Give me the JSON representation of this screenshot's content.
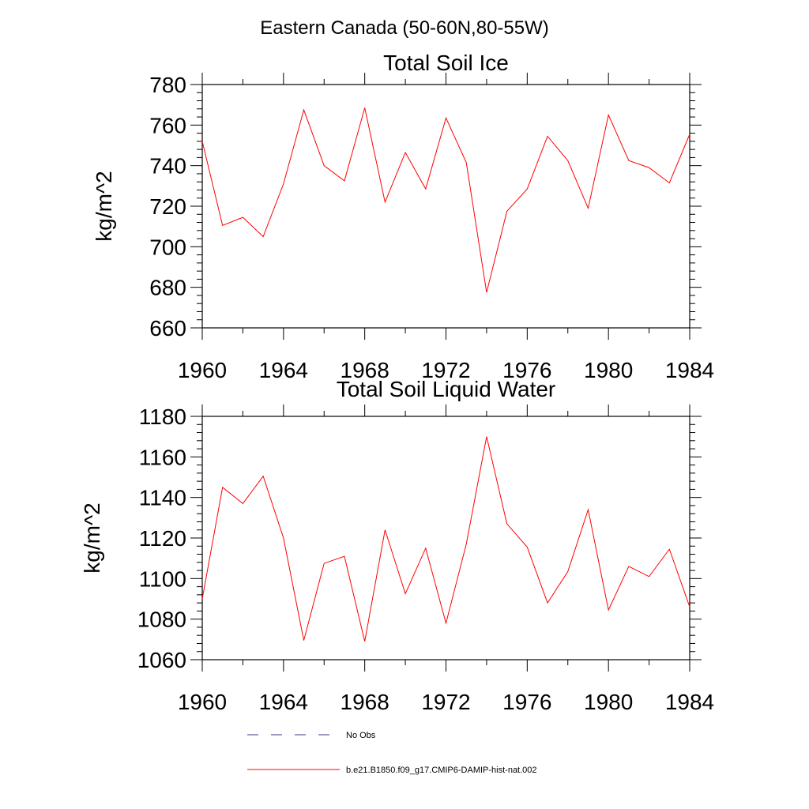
{
  "figure": {
    "title": "Eastern Canada (50-60N,80-55W)"
  },
  "colors": {
    "model_line": "#ff0000",
    "obs_line": "#3a3a8c",
    "axis": "#000000"
  },
  "legend": {
    "placement": "bottom",
    "entries": [
      {
        "label": "No Obs",
        "style": "dashed",
        "color": "#3a3a8c"
      },
      {
        "label": "b.e21.B1850.f09_g17.CMIP6-DAMIP-hist-nat.002",
        "style": "solid",
        "color": "#ff0000"
      }
    ]
  },
  "chart_data": [
    {
      "type": "line",
      "title": "Total Soil Ice",
      "xlabel": "",
      "ylabel": "kg/m^2",
      "xlim": [
        1960,
        1984
      ],
      "ylim": [
        660,
        780
      ],
      "xticks": [
        1960,
        1964,
        1968,
        1972,
        1976,
        1980,
        1984
      ],
      "yticks": [
        660,
        680,
        700,
        720,
        740,
        760,
        780
      ],
      "x": [
        1960,
        1961,
        1962,
        1963,
        1964,
        1965,
        1966,
        1967,
        1968,
        1969,
        1970,
        1971,
        1972,
        1973,
        1974,
        1975,
        1976,
        1977,
        1978,
        1979,
        1980,
        1981,
        1982,
        1983,
        1984
      ],
      "series": [
        {
          "name": "b.e21.B1850.f09_g17.CMIP6-DAMIP-hist-nat.002",
          "color": "#ff0000",
          "values": [
            752,
            710.5,
            714.5,
            705,
            731,
            767.5,
            740,
            732.5,
            768.5,
            722,
            746.5,
            728.5,
            763.5,
            741.5,
            677.5,
            717.5,
            728.5,
            754.5,
            742.5,
            719,
            765,
            742.5,
            739,
            731.5,
            755.5
          ]
        }
      ]
    },
    {
      "type": "line",
      "title": "Total Soil Liquid Water",
      "xlabel": "",
      "ylabel": "kg/m^2",
      "xlim": [
        1960,
        1984
      ],
      "ylim": [
        1060,
        1180
      ],
      "xticks": [
        1960,
        1964,
        1968,
        1972,
        1976,
        1980,
        1984
      ],
      "yticks": [
        1060,
        1080,
        1100,
        1120,
        1140,
        1160,
        1180
      ],
      "x": [
        1960,
        1961,
        1962,
        1963,
        1964,
        1965,
        1966,
        1967,
        1968,
        1969,
        1970,
        1971,
        1972,
        1973,
        1974,
        1975,
        1976,
        1977,
        1978,
        1979,
        1980,
        1981,
        1982,
        1983,
        1984
      ],
      "series": [
        {
          "name": "b.e21.B1850.f09_g17.CMIP6-DAMIP-hist-nat.002",
          "color": "#ff0000",
          "values": [
            1090,
            1145,
            1137,
            1150.5,
            1120,
            1069.5,
            1107.5,
            1111,
            1069,
            1124,
            1092.5,
            1115,
            1078,
            1117,
            1170,
            1127,
            1115.5,
            1088,
            1103.5,
            1134,
            1084.5,
            1106,
            1101,
            1114.5,
            1086
          ]
        }
      ]
    }
  ]
}
